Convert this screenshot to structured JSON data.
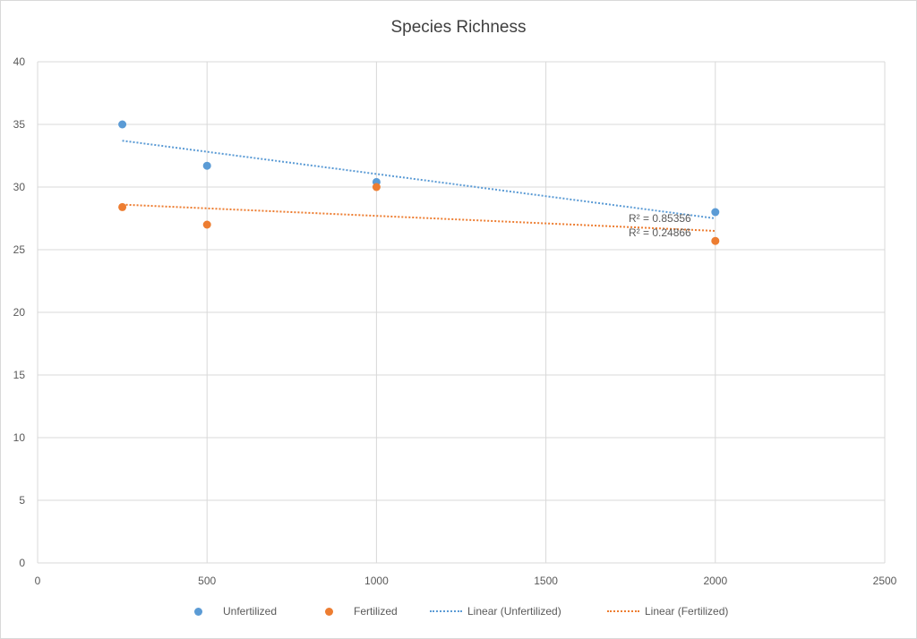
{
  "chart_data": {
    "type": "scatter",
    "title": "Species Richness",
    "xlabel": "",
    "ylabel": "",
    "xlim": [
      0,
      2500
    ],
    "ylim": [
      0,
      40
    ],
    "x_ticks": [
      0,
      500,
      1000,
      1500,
      2000,
      2500
    ],
    "y_ticks": [
      0,
      5,
      10,
      15,
      20,
      25,
      30,
      35,
      40
    ],
    "grid": true,
    "legend_position": "bottom",
    "series": [
      {
        "name": "Unfertilized",
        "color": "#5B9BD5",
        "x": [
          250,
          500,
          1000,
          2000
        ],
        "y": [
          35.0,
          31.7,
          30.4,
          28.0
        ]
      },
      {
        "name": "Fertilized",
        "color": "#ED7D31",
        "x": [
          250,
          500,
          1000,
          2000
        ],
        "y": [
          28.4,
          27.0,
          30.0,
          25.7
        ]
      }
    ],
    "trendlines": [
      {
        "name": "Linear  (Unfertilized)",
        "color": "#5B9BD5",
        "r2_label": "R² = 0.85356",
        "x_range": [
          250,
          2000
        ],
        "y_range": [
          33.7,
          27.5
        ]
      },
      {
        "name": "Linear  (Fertilized)",
        "color": "#ED7D31",
        "r2_label": "R² = 0.24866",
        "x_range": [
          250,
          2000
        ],
        "y_range": [
          28.6,
          26.5
        ]
      }
    ]
  }
}
